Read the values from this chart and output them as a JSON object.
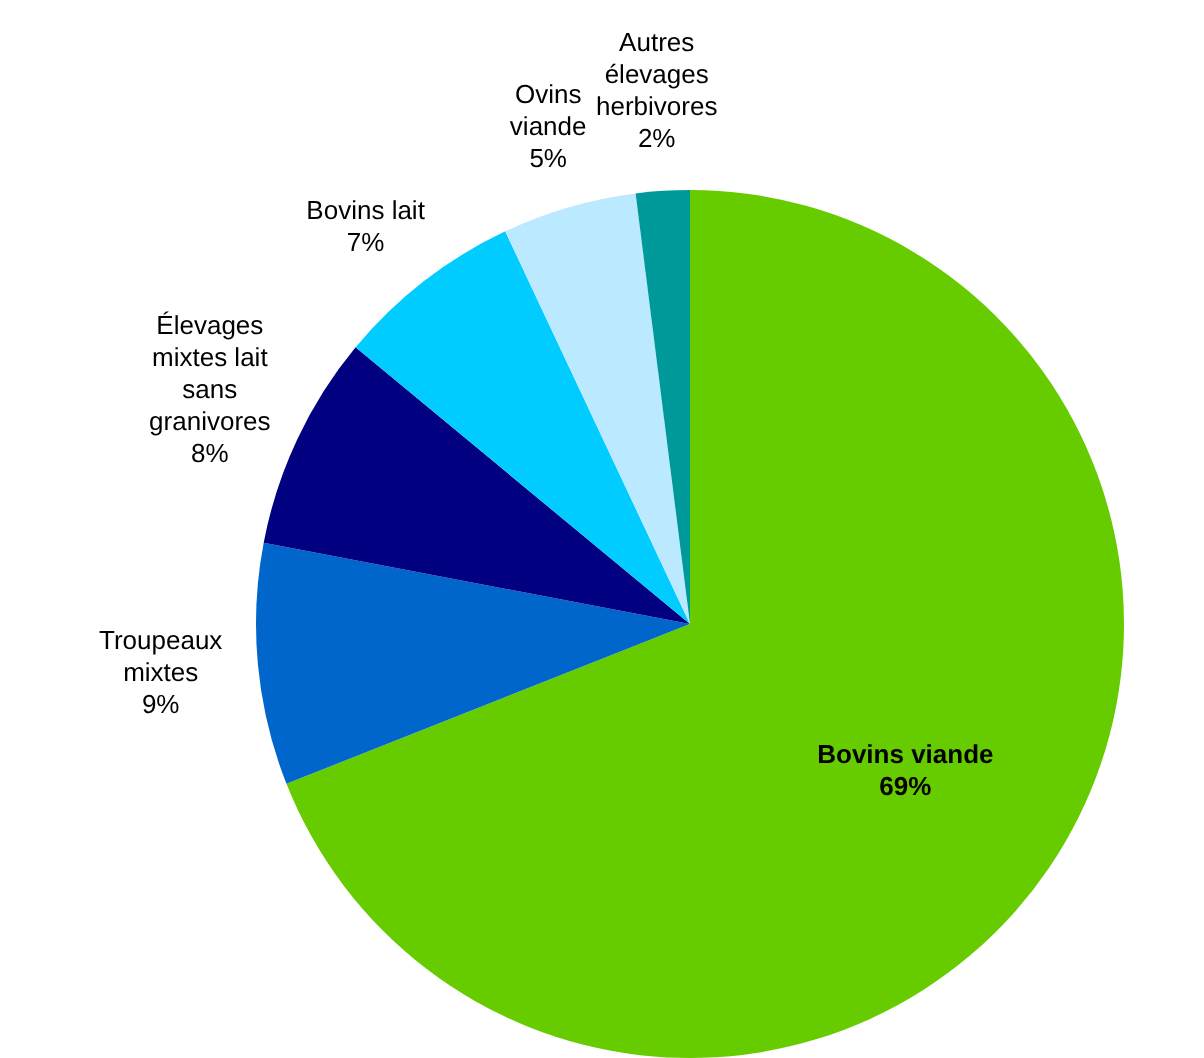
{
  "chart_data": {
    "type": "pie",
    "categories": [
      "Bovins viande",
      "Troupeaux mixtes",
      "Élevages mixtes lait sans granivores",
      "Bovins lait",
      "Ovins viande",
      "Autres élevages herbivores"
    ],
    "values": [
      69,
      9,
      8,
      7,
      5,
      2
    ],
    "value_labels": [
      "69%",
      "9%",
      "8%",
      "7%",
      "5%",
      "2%"
    ],
    "colors": [
      "#66cc00",
      "#0066cc",
      "#000080",
      "#00ccff",
      "#bbe9ff",
      "#009999"
    ],
    "legend": false
  }
}
